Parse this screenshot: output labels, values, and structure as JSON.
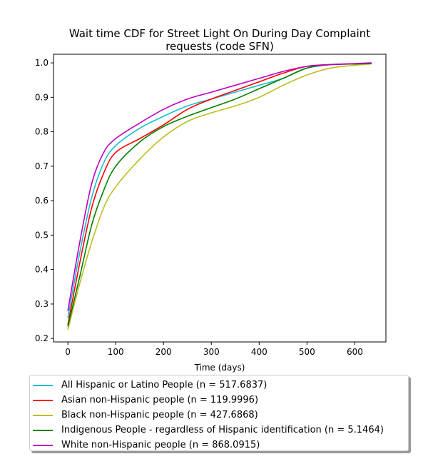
{
  "chart_data": {
    "type": "line",
    "title_line1": "Wait time CDF for Street Light On During Day Complaint",
    "title_line2": "requests (code SFN)",
    "xlabel": "Time (days)",
    "ylabel": "",
    "xlim": [
      -30,
      665
    ],
    "ylim": [
      0.19,
      1.025
    ],
    "x_ticks": [
      0,
      100,
      200,
      300,
      400,
      500,
      600
    ],
    "y_ticks": [
      0.2,
      0.3,
      0.4,
      0.5,
      0.6,
      0.7,
      0.8,
      0.9,
      1.0
    ],
    "grid": false,
    "legend_position": "below",
    "series": [
      {
        "name": "All Hispanic or Latino People (n = 517.6837)",
        "color": "#17becf",
        "x": [
          0,
          25,
          50,
          75,
          100,
          150,
          200,
          250,
          300,
          350,
          400,
          450,
          500,
          550,
          600,
          635
        ],
        "y": [
          0.26,
          0.45,
          0.61,
          0.71,
          0.76,
          0.81,
          0.845,
          0.875,
          0.895,
          0.915,
          0.935,
          0.955,
          0.985,
          0.995,
          0.997,
          0.999
        ]
      },
      {
        "name": "Asian non-Hispanic people (n = 119.9996)",
        "color": "#ff0000",
        "x": [
          0,
          25,
          50,
          75,
          100,
          150,
          200,
          250,
          300,
          350,
          400,
          450,
          500,
          550,
          600,
          635
        ],
        "y": [
          0.24,
          0.42,
          0.58,
          0.68,
          0.74,
          0.78,
          0.82,
          0.865,
          0.895,
          0.92,
          0.945,
          0.97,
          0.99,
          0.995,
          0.997,
          0.998
        ]
      },
      {
        "name": "Black non-Hispanic people (n = 427.6868)",
        "color": "#bcbd22",
        "x": [
          0,
          25,
          50,
          75,
          100,
          150,
          200,
          250,
          300,
          350,
          400,
          450,
          500,
          550,
          600,
          635
        ],
        "y": [
          0.225,
          0.36,
          0.48,
          0.58,
          0.64,
          0.72,
          0.785,
          0.83,
          0.855,
          0.875,
          0.9,
          0.935,
          0.965,
          0.985,
          0.993,
          0.997
        ]
      },
      {
        "name": "Indigenous People - regardless of Hispanic identification (n = 5.1464)",
        "color": "#008000",
        "x": [
          0,
          25,
          50,
          75,
          100,
          150,
          200,
          250,
          300,
          350,
          400,
          450,
          500,
          550,
          600,
          635
        ],
        "y": [
          0.235,
          0.38,
          0.53,
          0.63,
          0.7,
          0.77,
          0.815,
          0.845,
          0.87,
          0.895,
          0.925,
          0.955,
          0.985,
          0.995,
          0.997,
          0.998
        ]
      },
      {
        "name": "White non-Hispanic people (n = 868.0915)",
        "color": "#bf00bf",
        "x": [
          0,
          25,
          50,
          75,
          100,
          150,
          200,
          250,
          300,
          350,
          400,
          450,
          500,
          550,
          600,
          635
        ],
        "y": [
          0.28,
          0.48,
          0.65,
          0.74,
          0.78,
          0.825,
          0.865,
          0.895,
          0.915,
          0.935,
          0.955,
          0.975,
          0.99,
          0.995,
          0.998,
          1.0
        ]
      }
    ]
  }
}
